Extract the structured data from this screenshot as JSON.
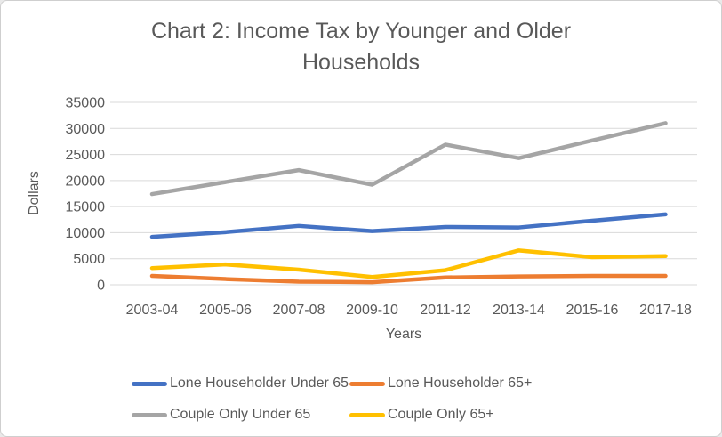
{
  "window": {
    "background": "#ffffff",
    "border_color": "#cfcfcf",
    "text_color": "#595959"
  },
  "chart_data": {
    "type": "line",
    "title": "Chart 2: Income Tax by Younger and Older Households",
    "xlabel": "Years",
    "ylabel": "Dollars",
    "categories": [
      "2003-04",
      "2005-06",
      "2007-08",
      "2009-10",
      "2011-12",
      "2013-14",
      "2015-16",
      "2017-18"
    ],
    "series": [
      {
        "name": "Lone Householder Under 65",
        "color": "#4472C4",
        "values": [
          9200,
          10100,
          11300,
          10300,
          11100,
          11000,
          12300,
          13500
        ]
      },
      {
        "name": "Lone Householder 65+",
        "color": "#ED7D31",
        "values": [
          1700,
          1100,
          600,
          500,
          1400,
          1600,
          1700,
          1700
        ]
      },
      {
        "name": "Couple Only Under 65",
        "color": "#A5A5A5",
        "values": [
          17400,
          19700,
          22000,
          19200,
          26900,
          24300,
          27700,
          31000
        ]
      },
      {
        "name": "Couple Only 65+",
        "color": "#FFC000",
        "values": [
          3200,
          3900,
          2900,
          1500,
          2800,
          6600,
          5300,
          5500
        ]
      }
    ],
    "ylim": [
      0,
      35000
    ],
    "yticks": [
      0,
      5000,
      10000,
      15000,
      20000,
      25000,
      30000,
      35000
    ],
    "grid": "horizontal",
    "grid_color": "#D9D9D9",
    "legend_position": "bottom",
    "line_width": 4.5
  }
}
